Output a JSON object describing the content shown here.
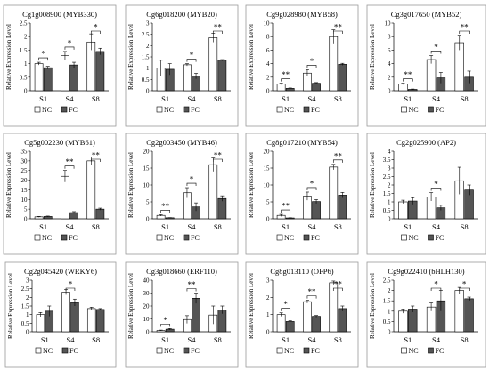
{
  "legend": {
    "nc": "NC",
    "fc": "FC"
  },
  "colors": {
    "nc": "#ffffff",
    "fc": "#555555",
    "frame": "#999999"
  },
  "chart_data": [
    {
      "type": "bar",
      "title": "Cg1g008900 (MYB330)",
      "ylabel": "Relative Expression Level",
      "categories": [
        "S1",
        "S4",
        "S8"
      ],
      "ylim": [
        0,
        2.5
      ],
      "yticks": [
        "0",
        "0.5",
        "1",
        "1.5",
        "2",
        "2.5"
      ],
      "series": [
        {
          "name": "NC",
          "values": [
            1.0,
            1.3,
            1.8
          ],
          "errors": [
            0.05,
            0.15,
            0.3
          ]
        },
        {
          "name": "FC",
          "values": [
            0.85,
            0.95,
            1.45
          ],
          "errors": [
            0.05,
            0.1,
            0.12
          ]
        }
      ],
      "significance": [
        "*",
        "*",
        "*"
      ]
    },
    {
      "type": "bar",
      "title": "Cg6g018200 (MYB20)",
      "ylabel": "Relative Expression Level",
      "categories": [
        "S1",
        "S4",
        "S8"
      ],
      "ylim": [
        0,
        3
      ],
      "yticks": [
        "0",
        "0.5",
        "1",
        "1.5",
        "2",
        "2.5",
        "3"
      ],
      "series": [
        {
          "name": "NC",
          "values": [
            1.0,
            1.15,
            2.35
          ],
          "errors": [
            0.35,
            0.05,
            0.2
          ]
        },
        {
          "name": "FC",
          "values": [
            0.95,
            0.65,
            1.35
          ],
          "errors": [
            0.25,
            0.12,
            0.03
          ]
        }
      ],
      "significance": [
        "",
        "*",
        "**"
      ]
    },
    {
      "type": "bar",
      "title": "Cg9g028980 (MYB58)",
      "ylabel": "Relative Expression Level",
      "categories": [
        "S1",
        "S4",
        "S8"
      ],
      "ylim": [
        0,
        10
      ],
      "yticks": [
        "0",
        "2",
        "4",
        "6",
        "8",
        "10"
      ],
      "series": [
        {
          "name": "NC",
          "values": [
            1.0,
            2.6,
            8.0
          ],
          "errors": [
            0.1,
            0.5,
            1.0
          ]
        },
        {
          "name": "FC",
          "values": [
            0.35,
            1.1,
            3.9
          ],
          "errors": [
            0.05,
            0.1,
            0.15
          ]
        }
      ],
      "significance": [
        "**",
        "*",
        "**"
      ]
    },
    {
      "type": "bar",
      "title": "Cg3g017650 (MYB52)",
      "ylabel": "Relative Expression Level",
      "categories": [
        "S1",
        "S4",
        "S8"
      ],
      "ylim": [
        0,
        10
      ],
      "yticks": [
        "0",
        "2",
        "4",
        "6",
        "8",
        "10"
      ],
      "series": [
        {
          "name": "NC",
          "values": [
            1.0,
            4.6,
            7.1
          ],
          "errors": [
            0.1,
            0.6,
            1.1
          ]
        },
        {
          "name": "FC",
          "values": [
            0.2,
            1.9,
            2.0
          ],
          "errors": [
            0.05,
            0.8,
            0.9
          ]
        }
      ],
      "significance": [
        "**",
        "*",
        "**"
      ]
    },
    {
      "type": "bar",
      "title": "Cg5g002230 (MYB61)",
      "ylabel": "Relative Expression Level",
      "categories": [
        "S1",
        "S4",
        "S8"
      ],
      "ylim": [
        0,
        35
      ],
      "yticks": [
        "0",
        "5",
        "10",
        "15",
        "20",
        "25",
        "30",
        "35"
      ],
      "series": [
        {
          "name": "NC",
          "values": [
            1.0,
            22.0,
            30.0
          ],
          "errors": [
            0.2,
            3.0,
            2.0
          ]
        },
        {
          "name": "FC",
          "values": [
            1.2,
            3.2,
            5.0
          ],
          "errors": [
            0.2,
            0.5,
            0.5
          ]
        }
      ],
      "significance": [
        "",
        "**",
        "**"
      ]
    },
    {
      "type": "bar",
      "title": "Cg2g003450 (MYB46)",
      "ylabel": "Relative Expression Level",
      "categories": [
        "S1",
        "S4",
        "S8"
      ],
      "ylim": [
        0,
        20
      ],
      "yticks": [
        "0",
        "5",
        "10",
        "15",
        "20"
      ],
      "series": [
        {
          "name": "NC",
          "values": [
            1.0,
            7.7,
            16.0
          ],
          "errors": [
            0.2,
            1.5,
            2.0
          ]
        },
        {
          "name": "FC",
          "values": [
            0.3,
            3.5,
            6.0
          ],
          "errors": [
            0.05,
            1.2,
            0.8
          ]
        }
      ],
      "significance": [
        "**",
        "*",
        "**"
      ]
    },
    {
      "type": "bar",
      "title": "Cg8g017210 (MYB54)",
      "ylabel": "Relative Expression Level",
      "categories": [
        "S1",
        "S4",
        "S8"
      ],
      "ylim": [
        0,
        20
      ],
      "yticks": [
        "0",
        "5",
        "10",
        "15",
        "20"
      ],
      "series": [
        {
          "name": "NC",
          "values": [
            1.0,
            6.7,
            15.3
          ],
          "errors": [
            0.3,
            1.2,
            0.8
          ]
        },
        {
          "name": "FC",
          "values": [
            0.25,
            5.1,
            7.0
          ],
          "errors": [
            0.05,
            0.6,
            0.8
          ]
        }
      ],
      "significance": [
        "**",
        "*",
        "**"
      ]
    },
    {
      "type": "bar",
      "title": "Cg2g025900 (AP2)",
      "ylabel": "Relative Expression Level",
      "categories": [
        "S1",
        "S4",
        "S8"
      ],
      "ylim": [
        0,
        4
      ],
      "yticks": [
        "0",
        "0.5",
        "1",
        "1.5",
        "2",
        "2.5",
        "3",
        "3.5",
        "4"
      ],
      "series": [
        {
          "name": "NC",
          "values": [
            1.0,
            1.3,
            2.25
          ],
          "errors": [
            0.1,
            0.25,
            0.8
          ]
        },
        {
          "name": "FC",
          "values": [
            1.05,
            0.65,
            1.7
          ],
          "errors": [
            0.2,
            0.15,
            0.3
          ]
        }
      ],
      "significance": [
        "",
        "*",
        ""
      ]
    },
    {
      "type": "bar",
      "title": "Cg2g045420 (WRKY6)",
      "ylabel": "Relative Expression Level",
      "categories": [
        "S1",
        "S4",
        "S8"
      ],
      "ylim": [
        0,
        3
      ],
      "yticks": [
        "0",
        "0.5",
        "1",
        "1.5",
        "2",
        "2.5",
        "3"
      ],
      "series": [
        {
          "name": "NC",
          "values": [
            1.0,
            2.3,
            1.35
          ],
          "errors": [
            0.12,
            0.15,
            0.08
          ]
        },
        {
          "name": "FC",
          "values": [
            1.2,
            1.7,
            1.3
          ],
          "errors": [
            0.3,
            0.2,
            0.05
          ]
        }
      ],
      "significance": [
        "",
        "*",
        ""
      ]
    },
    {
      "type": "bar",
      "title": "Cg3g018660 (ERF110)",
      "ylabel": "Relative Expression Level",
      "categories": [
        "S1",
        "S4",
        "S8"
      ],
      "ylim": [
        0,
        40
      ],
      "yticks": [
        "0",
        "10",
        "20",
        "30",
        "40"
      ],
      "series": [
        {
          "name": "NC",
          "values": [
            1.0,
            9.5,
            13.0
          ],
          "errors": [
            0.3,
            3.0,
            7.0
          ]
        },
        {
          "name": "FC",
          "values": [
            2.0,
            26.0,
            17.0
          ],
          "errors": [
            0.5,
            4.0,
            3.0
          ]
        }
      ],
      "significance": [
        "*",
        "**",
        ""
      ]
    },
    {
      "type": "bar",
      "title": "Cg8g013110 (OFP6)",
      "ylabel": "Relative Expression Level",
      "categories": [
        "S1",
        "S4",
        "S8"
      ],
      "ylim": [
        0,
        3
      ],
      "yticks": [
        "0",
        "1",
        "2",
        "3"
      ],
      "series": [
        {
          "name": "NC",
          "values": [
            1.0,
            1.75,
            2.85
          ],
          "errors": [
            0.1,
            0.08,
            0.1
          ]
        },
        {
          "name": "FC",
          "values": [
            0.6,
            0.9,
            1.35
          ],
          "errors": [
            0.05,
            0.05,
            0.15
          ]
        }
      ],
      "significance": [
        "*",
        "**",
        "**"
      ]
    },
    {
      "type": "bar",
      "title": "Cg9g022410 (bHLH130)",
      "ylabel": "Relative Expression Level",
      "categories": [
        "S1",
        "S4",
        "S8"
      ],
      "ylim": [
        0,
        2.5
      ],
      "yticks": [
        "0",
        "0.5",
        "1",
        "1.5",
        "2",
        "2.5"
      ],
      "series": [
        {
          "name": "NC",
          "values": [
            1.0,
            1.2,
            2.0
          ],
          "errors": [
            0.1,
            0.2,
            0.15
          ]
        },
        {
          "name": "FC",
          "values": [
            1.1,
            1.5,
            1.6
          ],
          "errors": [
            0.15,
            0.5,
            0.08
          ]
        }
      ],
      "significance": [
        "",
        "*",
        "*"
      ]
    }
  ]
}
